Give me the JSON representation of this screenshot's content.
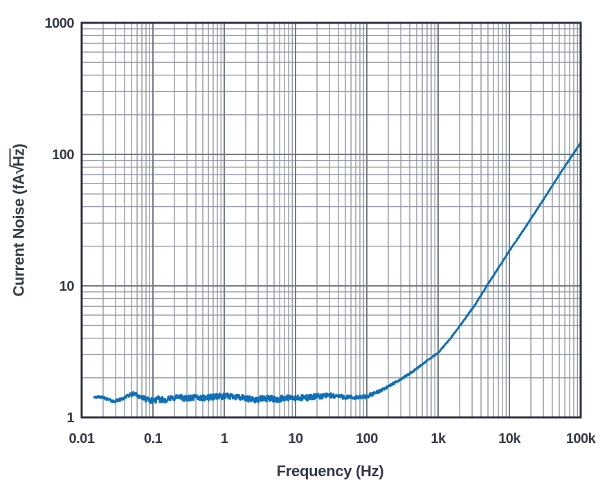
{
  "colors": {
    "background": "#ffffff",
    "curve": "#0f70b8",
    "grid_minor": "#9198a3",
    "grid_major": "#747b87",
    "axis_border": "#2c323d",
    "text": "#333a46"
  },
  "x_axis_title": "Frequency (Hz)",
  "y_axis_title": {
    "prefix": "Current Noise (fA",
    "radical": "√",
    "radicand": "Hz",
    "suffix": ")"
  },
  "chart_data": {
    "type": "line",
    "title": "",
    "xlabel": "Frequency (Hz)",
    "ylabel": "Current Noise (fA√Hz)",
    "x_scale": "log",
    "y_scale": "log",
    "xlim": [
      0.01,
      100000
    ],
    "ylim": [
      1,
      1000
    ],
    "grid": "log major and minor gridlines, both axes",
    "legend": "none",
    "x_ticks": [
      {
        "value": 0.01,
        "label": "0.01"
      },
      {
        "value": 0.1,
        "label": "0.1"
      },
      {
        "value": 1,
        "label": "1"
      },
      {
        "value": 10,
        "label": "10"
      },
      {
        "value": 100,
        "label": "100"
      },
      {
        "value": 1000,
        "label": "1k"
      },
      {
        "value": 10000,
        "label": "10k"
      },
      {
        "value": 100000,
        "label": "100k"
      }
    ],
    "y_ticks": [
      {
        "value": 1,
        "label": "1"
      },
      {
        "value": 10,
        "label": "10"
      },
      {
        "value": 100,
        "label": "100"
      },
      {
        "value": 1000,
        "label": "1000"
      }
    ],
    "series": [
      {
        "name": "input-current-noise",
        "color": "#0f70b8",
        "flat_level_fa": 1.4,
        "noise_description": "noisy measured trace, flat ~1.4 fA/rtHz below ~100 Hz, rising ~f^0.8 above corner",
        "points": [
          [
            0.015,
            1.42
          ],
          [
            0.02,
            1.41
          ],
          [
            0.028,
            1.31
          ],
          [
            0.035,
            1.34
          ],
          [
            0.045,
            1.43
          ],
          [
            0.055,
            1.49
          ],
          [
            0.07,
            1.41
          ],
          [
            0.09,
            1.37
          ],
          [
            0.12,
            1.42
          ],
          [
            0.16,
            1.4
          ],
          [
            0.22,
            1.44
          ],
          [
            0.3,
            1.38
          ],
          [
            0.4,
            1.42
          ],
          [
            0.55,
            1.4
          ],
          [
            0.75,
            1.43
          ],
          [
            1,
            1.4
          ],
          [
            1.4,
            1.42
          ],
          [
            2,
            1.39
          ],
          [
            3,
            1.41
          ],
          [
            4,
            1.43
          ],
          [
            5.5,
            1.38
          ],
          [
            7.5,
            1.41
          ],
          [
            10,
            1.4
          ],
          [
            14,
            1.42
          ],
          [
            20,
            1.41
          ],
          [
            30,
            1.42
          ],
          [
            45,
            1.43
          ],
          [
            65,
            1.44
          ],
          [
            100,
            1.46
          ],
          [
            140,
            1.56
          ],
          [
            200,
            1.72
          ],
          [
            300,
            1.95
          ],
          [
            450,
            2.25
          ],
          [
            650,
            2.62
          ],
          [
            1000,
            3.1
          ],
          [
            1500,
            4.0
          ],
          [
            2200,
            5.3
          ],
          [
            3300,
            7.2
          ],
          [
            5000,
            10.3
          ],
          [
            7500,
            14.5
          ],
          [
            10000,
            18.5
          ],
          [
            15000,
            25.5
          ],
          [
            22000,
            35
          ],
          [
            33000,
            49
          ],
          [
            50000,
            70
          ],
          [
            75000,
            97
          ],
          [
            100000,
            123
          ]
        ]
      }
    ]
  }
}
